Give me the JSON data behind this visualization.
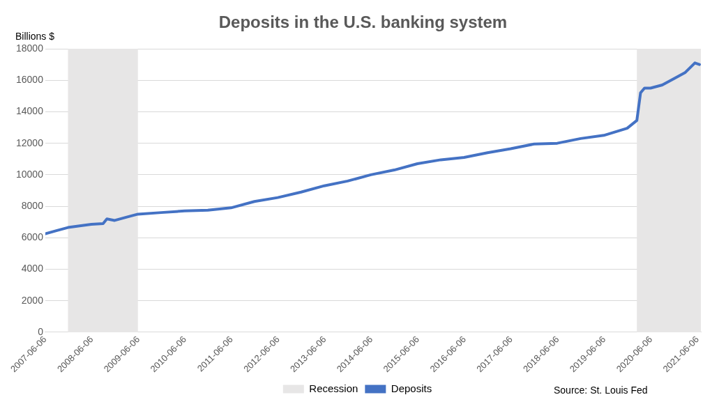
{
  "chart_data": {
    "type": "line",
    "title": "Deposits in the U.S. banking system",
    "ylabel": "Billions $",
    "x": [
      "2007-06-06",
      "2007-09-01",
      "2007-12-01",
      "2008-03-01",
      "2008-06-01",
      "2008-09-01",
      "2008-10-01",
      "2008-12-01",
      "2009-03-01",
      "2009-06-01",
      "2009-12-01",
      "2010-06-01",
      "2010-12-01",
      "2011-06-01",
      "2011-12-01",
      "2012-06-01",
      "2012-12-01",
      "2013-06-01",
      "2013-12-01",
      "2014-06-01",
      "2014-12-01",
      "2015-06-01",
      "2015-12-01",
      "2016-06-01",
      "2016-12-01",
      "2017-06-01",
      "2017-12-01",
      "2018-06-01",
      "2018-12-01",
      "2019-06-01",
      "2019-12-01",
      "2020-02-15",
      "2020-03-15",
      "2020-04-15",
      "2020-06-01",
      "2020-09-01",
      "2020-12-01",
      "2021-03-01",
      "2021-04-20",
      "2021-05-15",
      "2021-06-20"
    ],
    "series": [
      {
        "name": "Deposits",
        "color": "#4472c4",
        "values": [
          6250,
          6450,
          6650,
          6750,
          6850,
          6900,
          7200,
          7100,
          7300,
          7500,
          7600,
          7700,
          7750,
          7900,
          8300,
          8550,
          8900,
          9300,
          9600,
          10000,
          10300,
          10700,
          10950,
          11100,
          11400,
          11650,
          11950,
          12000,
          12300,
          12500,
          12950,
          13450,
          15200,
          15500,
          15500,
          15700,
          16100,
          16500,
          16900,
          17100,
          17000
        ]
      }
    ],
    "bands": [
      {
        "axis": "x",
        "from": "2007-12-01",
        "to": "2009-06-01",
        "label": "Recession",
        "color": "#e7e6e6"
      },
      {
        "axis": "x",
        "from": "2020-02-15",
        "to": "2021-07-01",
        "color": "#e7e6e6"
      }
    ],
    "xlim": [
      "2007-06-06",
      "2021-07-01"
    ],
    "xticks": [
      "2007-06-06",
      "2008-06-06",
      "2009-06-06",
      "2010-06-06",
      "2011-06-06",
      "2012-06-06",
      "2013-06-06",
      "2014-06-06",
      "2015-06-06",
      "2016-06-06",
      "2017-06-06",
      "2018-06-06",
      "2019-06-06",
      "2020-06-06",
      "2021-06-06"
    ],
    "ylim": [
      0,
      18000
    ],
    "yticks": [
      0,
      2000,
      4000,
      6000,
      8000,
      10000,
      12000,
      14000,
      16000,
      18000
    ],
    "grid": "y",
    "legend": "bottom",
    "marker": "none",
    "line_style": "solid",
    "annotations": [
      "Source: St. Louis Fed"
    ]
  }
}
